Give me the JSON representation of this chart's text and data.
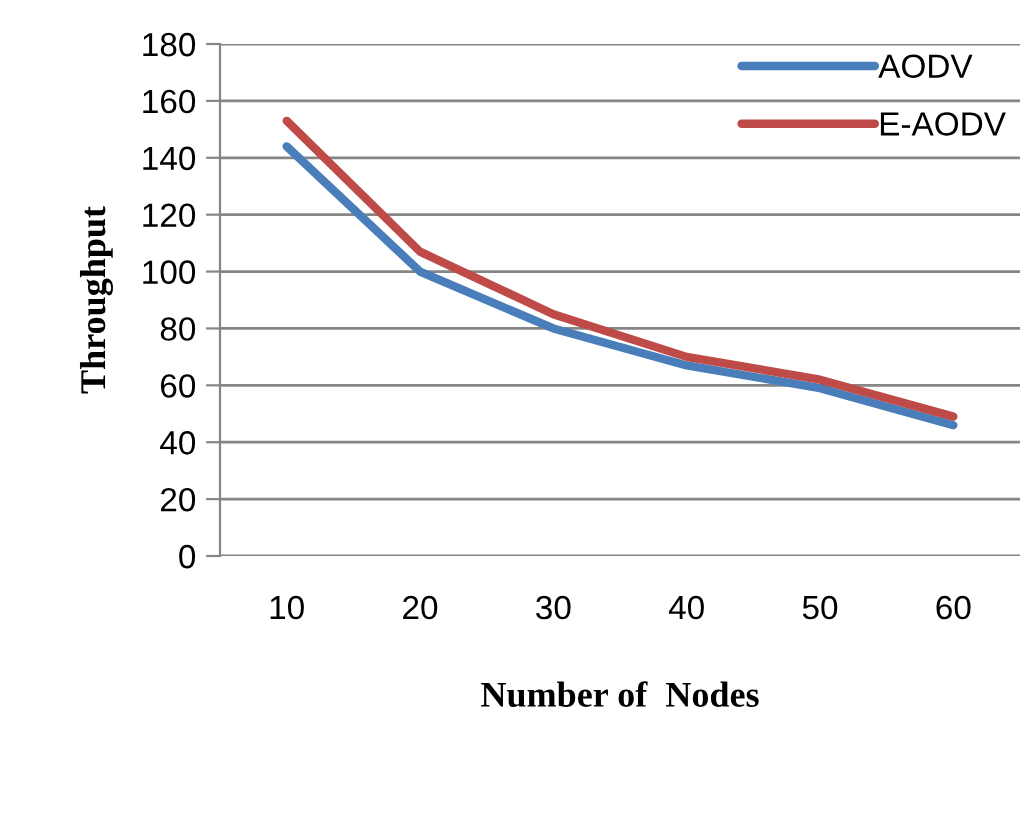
{
  "chart_data": {
    "type": "line",
    "xlabel": "Number of  Nodes",
    "ylabel": "Throughput",
    "categories": [
      "10",
      "20",
      "30",
      "40",
      "50",
      "60"
    ],
    "series": [
      {
        "name": "AODV",
        "color": "#4a7ebb",
        "values": [
          144,
          100,
          80,
          67,
          59,
          46
        ]
      },
      {
        "name": "E-AODV",
        "color": "#be4b48",
        "values": [
          153,
          107,
          85,
          70,
          62,
          49
        ]
      }
    ],
    "ylim": [
      0,
      180
    ],
    "yticks": [
      0,
      20,
      40,
      60,
      80,
      100,
      120,
      140,
      160,
      180
    ],
    "grid": "y",
    "legend": "top right",
    "marker": "none",
    "line_style": "solid"
  }
}
